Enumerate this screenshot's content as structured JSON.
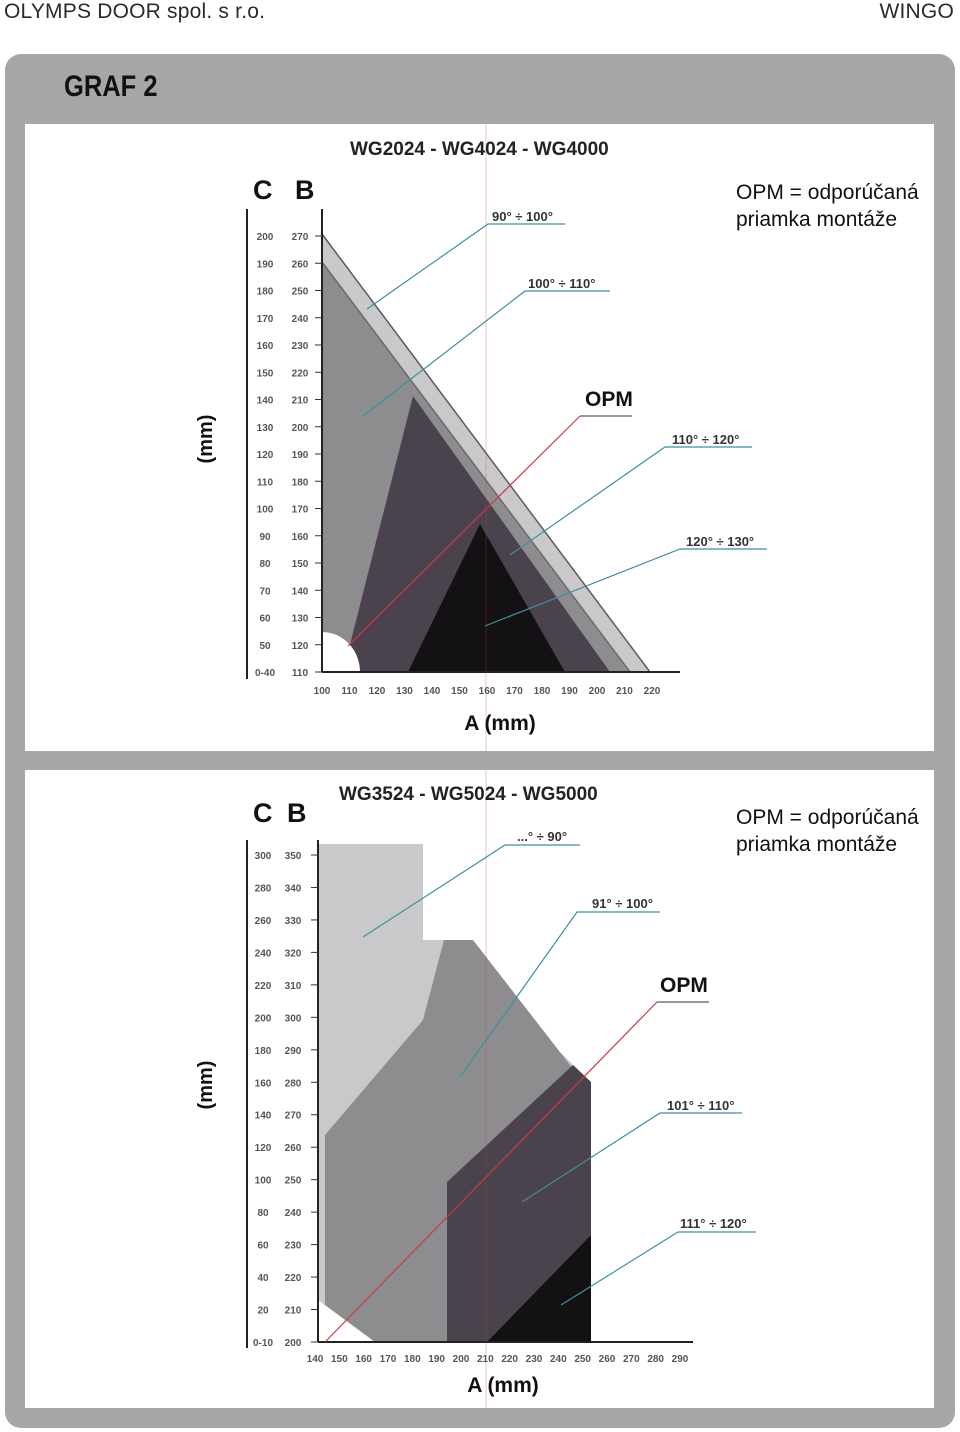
{
  "header": {
    "company": "OLYMPS DOOR spol. s r.o.",
    "product": "WINGO"
  },
  "frame": {
    "title": "GRAF 2"
  },
  "charts": [
    {
      "title": "WG2024 - WG4024 - WG4000",
      "c_label": "C",
      "b_label": "B",
      "y_unit": "(mm)",
      "x_label": "A (mm)",
      "opm_label": "OPM",
      "legend_line1": "OPM = odporúčaná",
      "legend_line2": "priamka montáže",
      "c_ticks": [
        "200",
        "190",
        "180",
        "170",
        "160",
        "150",
        "140",
        "130",
        "120",
        "110",
        "100",
        "90",
        "80",
        "70",
        "60",
        "50",
        "0-40"
      ],
      "b_ticks": [
        "270",
        "260",
        "250",
        "240",
        "230",
        "220",
        "210",
        "200",
        "190",
        "180",
        "170",
        "160",
        "150",
        "140",
        "130",
        "120",
        "110"
      ],
      "x_ticks": [
        "100",
        "110",
        "120",
        "130",
        "140",
        "150",
        "160",
        "170",
        "180",
        "190",
        "200",
        "210",
        "220"
      ],
      "zones": [
        "90° ÷ 100°",
        "100° ÷ 110°",
        "110° ÷ 120°",
        "120° ÷ 130°"
      ]
    },
    {
      "title": "WG3524 - WG5024 - WG5000",
      "c_label": "C",
      "b_label": "B",
      "y_unit": "(mm)",
      "x_label": "A (mm)",
      "opm_label": "OPM",
      "legend_line1": "OPM = odporúčaná",
      "legend_line2": "priamka montáže",
      "c_ticks": [
        "300",
        "280",
        "260",
        "240",
        "220",
        "200",
        "180",
        "160",
        "140",
        "120",
        "100",
        "80",
        "60",
        "40",
        "20",
        "0-10"
      ],
      "b_ticks": [
        "350",
        "340",
        "330",
        "320",
        "310",
        "300",
        "290",
        "280",
        "270",
        "260",
        "250",
        "240",
        "230",
        "220",
        "210",
        "200"
      ],
      "x_ticks": [
        "140",
        "150",
        "160",
        "170",
        "180",
        "190",
        "200",
        "210",
        "220",
        "230",
        "240",
        "250",
        "260",
        "270",
        "280",
        "290"
      ],
      "zones": [
        "...° ÷ 90°",
        "91° ÷ 100°",
        "101° ÷ 110°",
        "111° ÷ 120°"
      ]
    }
  ],
  "colors": {
    "frame": "#a7a7a7",
    "zone_light": "#c9c9cb",
    "zone_mid": "#8d8d90",
    "zone_dark": "#4a434e",
    "zone_black": "#141114",
    "leader": "#3f8fa0",
    "opm_line": "#c93b40"
  }
}
